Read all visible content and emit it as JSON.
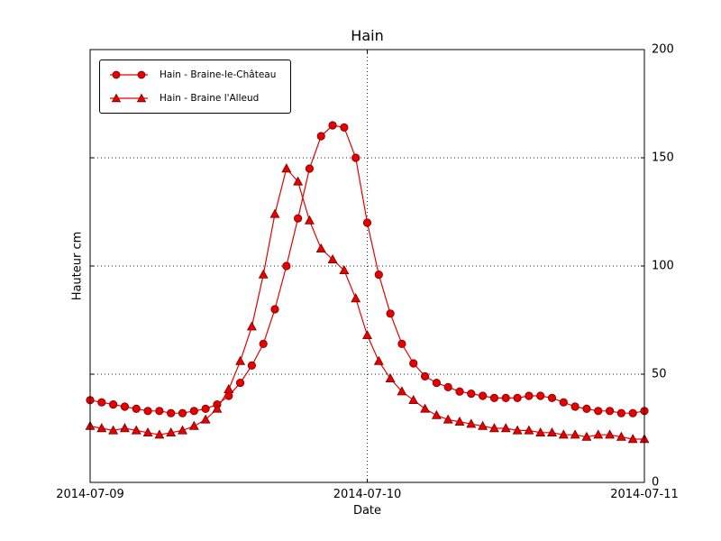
{
  "chart_data": {
    "type": "line",
    "title": "Hain",
    "xlabel": "Date",
    "ylabel": "Hauteur cm",
    "x_tick_labels": [
      "2014-07-09",
      "2014-07-10",
      "2014-07-11"
    ],
    "x_tick_hours": [
      0,
      24,
      48
    ],
    "xlim_hours": [
      0,
      48
    ],
    "x_step_hours": 1,
    "y_ticks": [
      0,
      50,
      100,
      150,
      200
    ],
    "ylim": [
      0,
      200
    ],
    "grid": "dotted",
    "legend_position": "upper-left",
    "line_color": "#e60000",
    "marker_edge_color": "#7a0000",
    "series": [
      {
        "name": "Hain - Braine-le-Château",
        "marker": "circle",
        "values": [
          38,
          37,
          36,
          35,
          34,
          33,
          33,
          32,
          32,
          33,
          34,
          36,
          40,
          46,
          54,
          64,
          80,
          100,
          122,
          145,
          160,
          165,
          164,
          150,
          120,
          96,
          78,
          64,
          55,
          49,
          46,
          44,
          42,
          41,
          40,
          39,
          39,
          39,
          40,
          40,
          39,
          37,
          35,
          34,
          33,
          33,
          32,
          32,
          33
        ]
      },
      {
        "name": "Hain - Braine l'Alleud",
        "marker": "triangle",
        "values": [
          26,
          25,
          24,
          25,
          24,
          23,
          22,
          23,
          24,
          26,
          29,
          34,
          43,
          56,
          72,
          96,
          124,
          145,
          139,
          121,
          108,
          103,
          98,
          85,
          68,
          56,
          48,
          42,
          38,
          34,
          31,
          29,
          28,
          27,
          26,
          25,
          25,
          24,
          24,
          23,
          23,
          22,
          22,
          21,
          22,
          22,
          21,
          20,
          20
        ]
      }
    ]
  }
}
